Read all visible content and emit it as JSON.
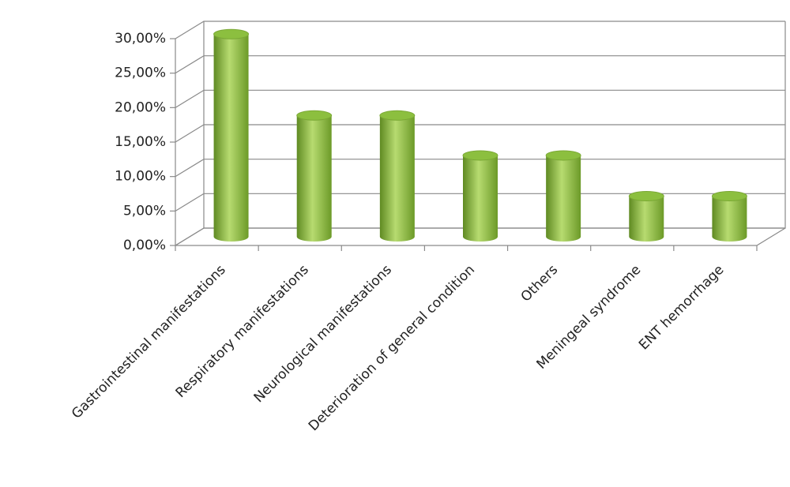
{
  "chart_data": {
    "type": "bar",
    "style": "3d-cylinder",
    "categories": [
      "Gastrointestinal  manifestations",
      "Respiratory manifestations",
      "Neurological manifestations",
      "Deterioration of general condition",
      "Others",
      "Meningeal syndrome",
      "ENT hemorrhage"
    ],
    "values": [
      29.4,
      17.6,
      17.6,
      11.8,
      11.8,
      5.9,
      5.9
    ],
    "color": "#8cbf3f",
    "ylim": [
      0,
      30
    ],
    "yticks": [
      {
        "value": 0,
        "label": "0,00%"
      },
      {
        "value": 5,
        "label": "5,00%"
      },
      {
        "value": 10,
        "label": "10,00%"
      },
      {
        "value": 15,
        "label": "15,00%"
      },
      {
        "value": 20,
        "label": "20,00%"
      },
      {
        "value": 25,
        "label": "25,00%"
      },
      {
        "value": 30,
        "label": "30,00%"
      }
    ],
    "grid": true
  }
}
